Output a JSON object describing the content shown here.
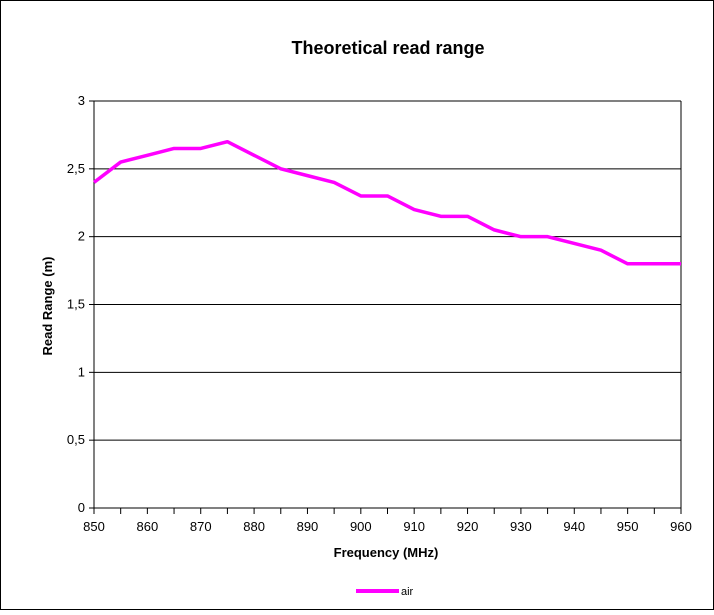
{
  "chart_data": {
    "type": "line",
    "title": "Theoretical read range",
    "xlabel": "Frequency (MHz)",
    "ylabel": "Read Range (m)",
    "xlim": [
      850,
      960
    ],
    "ylim": [
      0,
      3
    ],
    "x_ticks": [
      850,
      860,
      870,
      880,
      890,
      900,
      910,
      920,
      930,
      940,
      950,
      960
    ],
    "x_tick_labels": [
      "850",
      "860",
      "870",
      "880",
      "890",
      "900",
      "910",
      "920",
      "930",
      "940",
      "950",
      "960"
    ],
    "y_ticks": [
      0,
      0.5,
      1,
      1.5,
      2,
      2.5,
      3
    ],
    "y_tick_labels": [
      "0",
      "0,5",
      "1",
      "1,5",
      "2",
      "2,5",
      "3"
    ],
    "grid": "horizontal",
    "legend_position": "bottom",
    "series": [
      {
        "name": "air",
        "color": "#ff00ff",
        "x": [
          850,
          855,
          860,
          865,
          870,
          875,
          880,
          885,
          890,
          895,
          900,
          905,
          910,
          915,
          920,
          925,
          930,
          935,
          940,
          945,
          950,
          955,
          960
        ],
        "y": [
          2.4,
          2.55,
          2.6,
          2.65,
          2.65,
          2.7,
          2.6,
          2.5,
          2.45,
          2.4,
          2.3,
          2.3,
          2.2,
          2.15,
          2.15,
          2.05,
          2.0,
          2.0,
          1.95,
          1.9,
          1.8,
          1.8,
          1.8
        ]
      }
    ]
  }
}
